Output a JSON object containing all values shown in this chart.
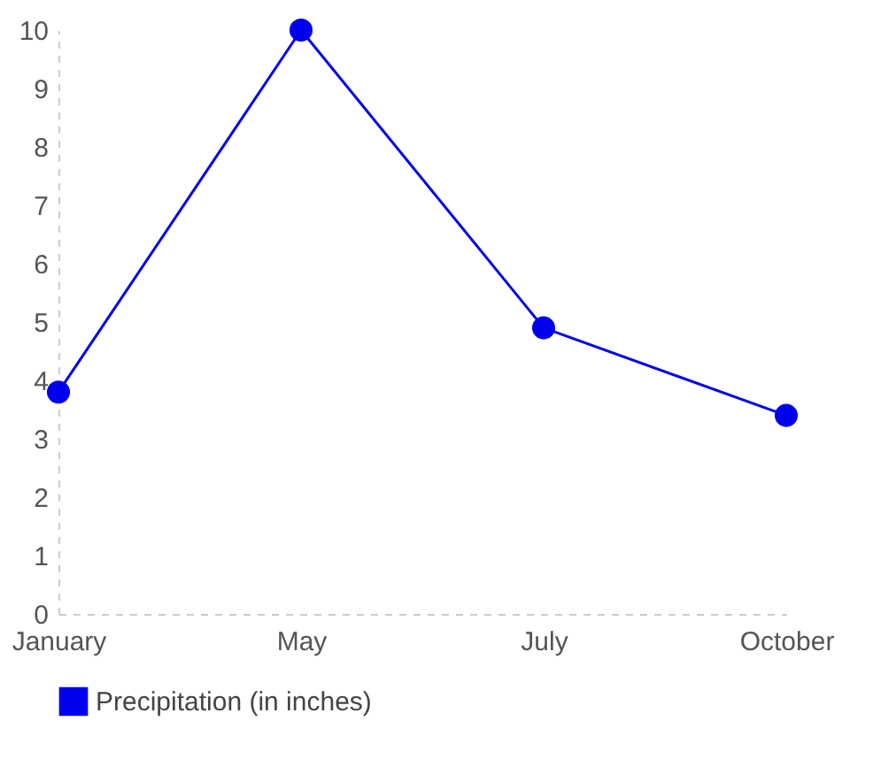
{
  "chart_data": {
    "type": "line",
    "categories": [
      "January",
      "May",
      "July",
      "October"
    ],
    "series": [
      {
        "name": "Precipitation (in inches)",
        "color": "#0000ee",
        "values": [
          3.8,
          10,
          4.9,
          3.4
        ]
      }
    ],
    "ylim": [
      0,
      10
    ],
    "yticks": [
      0,
      1,
      2,
      3,
      4,
      5,
      6,
      7,
      8,
      9,
      10
    ],
    "grid": false,
    "legend": "bottom",
    "marker": "circle",
    "line_style": "solid"
  }
}
